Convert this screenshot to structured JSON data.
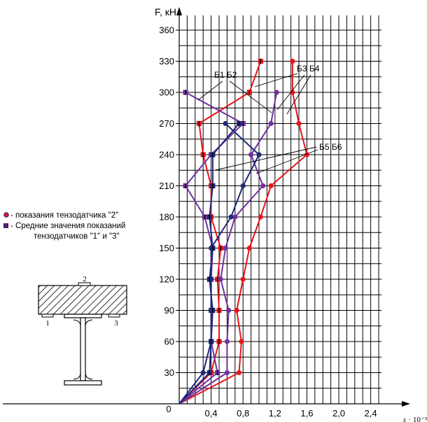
{
  "chart_data": {
    "type": "line",
    "ylabel": "F, кН",
    "xlabel": "ε · 10⁻³",
    "origin_label": "0",
    "xlim": [
      0,
      2.6
    ],
    "ylim": [
      0,
      370
    ],
    "grid": true,
    "x_ticks": [
      "0,4",
      "0,8",
      "1,2",
      "1,6",
      "2,0",
      "2,4"
    ],
    "x_tick_values": [
      0.4,
      0.8,
      1.2,
      1.6,
      2.0,
      2.4
    ],
    "y_ticks": [
      "30",
      "60",
      "90",
      "120",
      "150",
      "180",
      "210",
      "240",
      "270",
      "300",
      "330",
      "360"
    ],
    "y_tick_values": [
      30,
      60,
      90,
      120,
      150,
      180,
      210,
      240,
      270,
      300,
      330,
      360
    ],
    "series": [
      {
        "color": "#e8141c",
        "marker": "circle",
        "points": [
          [
            0,
            0
          ],
          [
            0.75,
            30
          ],
          [
            0.78,
            60
          ],
          [
            0.72,
            90
          ],
          [
            0.8,
            120
          ],
          [
            0.88,
            150
          ],
          [
            1.02,
            180
          ],
          [
            1.15,
            210
          ],
          [
            1.6,
            240
          ],
          [
            1.5,
            270
          ],
          [
            1.42,
            300
          ],
          [
            1.42,
            330
          ]
        ]
      },
      {
        "color": "#e8141c",
        "marker": "square",
        "points": [
          [
            0,
            0
          ],
          [
            0.4,
            30
          ],
          [
            0.5,
            60
          ],
          [
            0.5,
            90
          ],
          [
            0.48,
            120
          ],
          [
            0.52,
            150
          ],
          [
            0.4,
            180
          ],
          [
            0.4,
            210
          ],
          [
            0.3,
            240
          ],
          [
            0.25,
            270
          ],
          [
            0.88,
            300
          ],
          [
            1.02,
            330
          ]
        ]
      },
      {
        "color": "#7030a0",
        "marker": "circle",
        "points": [
          [
            0,
            0
          ],
          [
            0.6,
            30
          ],
          [
            0.6,
            60
          ],
          [
            0.62,
            90
          ],
          [
            0.52,
            120
          ],
          [
            0.58,
            150
          ],
          [
            0.7,
            180
          ],
          [
            1.05,
            210
          ],
          [
            0.9,
            240
          ],
          [
            1.15,
            270
          ],
          [
            1.22,
            300
          ]
        ]
      },
      {
        "color": "#7030a0",
        "marker": "square",
        "points": [
          [
            0,
            0
          ],
          [
            0.48,
            30
          ],
          [
            0.4,
            60
          ],
          [
            0.4,
            90
          ],
          [
            0.4,
            120
          ],
          [
            0.42,
            150
          ],
          [
            0.32,
            180
          ],
          [
            0.08,
            210
          ],
          [
            0.4,
            240
          ],
          [
            0.8,
            270
          ],
          [
            0.08,
            300
          ]
        ]
      },
      {
        "color": "#1f2a78",
        "marker": "circle",
        "points": [
          [
            0,
            0
          ],
          [
            0.3,
            30
          ],
          [
            0.4,
            60
          ],
          [
            0.4,
            90
          ],
          [
            0.4,
            120
          ],
          [
            0.4,
            150
          ],
          [
            0.65,
            180
          ],
          [
            0.8,
            210
          ],
          [
            1.0,
            240
          ],
          [
            0.58,
            270
          ]
        ]
      },
      {
        "color": "#1f2a78",
        "marker": "square",
        "points": [
          [
            0,
            0
          ],
          [
            0.38,
            30
          ],
          [
            0.4,
            60
          ],
          [
            0.42,
            90
          ],
          [
            0.38,
            120
          ],
          [
            0.42,
            150
          ],
          [
            0.38,
            180
          ],
          [
            0.42,
            210
          ],
          [
            0.42,
            240
          ],
          [
            0.75,
            270
          ]
        ]
      }
    ],
    "annotations": [
      {
        "text": "Б1 Б2"
      },
      {
        "text": "Б3 Б4"
      },
      {
        "text": "Б5 Б6"
      }
    ],
    "legend": {
      "placement": "left",
      "items": [
        {
          "marker": "circle",
          "text": "- показания тензодатчика \"2\""
        },
        {
          "marker": "square",
          "text": "- Средние значения показаний"
        },
        {
          "marker": "none",
          "text": "тензодатчиков \"1\" и \"3\""
        }
      ]
    },
    "section_labels": [
      "2",
      "1",
      "3"
    ]
  }
}
